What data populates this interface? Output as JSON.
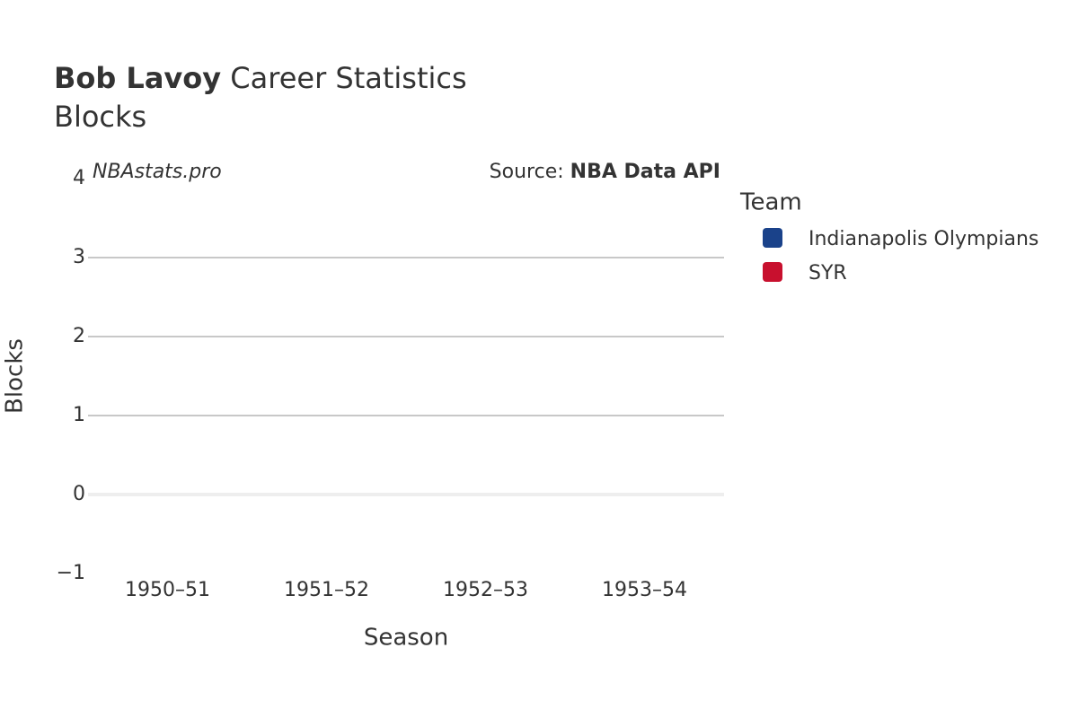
{
  "chart_data": {
    "type": "bar",
    "title": {
      "name": "Bob Lavoy",
      "rest": "Career Statistics"
    },
    "subtitle": "Blocks",
    "annotations": {
      "site": "NBAstats.pro",
      "source_label": "Source:",
      "source": "NBA Data API"
    },
    "x_label": "Season",
    "y_label": "Blocks",
    "categories": [
      "1950–51",
      "1951–52",
      "1952–53",
      "1953–54"
    ],
    "series": [
      {
        "name": "Indianapolis Olympians",
        "color": "#1a428a",
        "values": [
          0,
          0,
          0,
          0
        ]
      },
      {
        "name": "SYR",
        "color": "#c8102e",
        "values": [
          0,
          0,
          0,
          0
        ]
      }
    ],
    "legend_title": "Team",
    "legend": "right",
    "ylim": [
      -1,
      4
    ],
    "yticks": [
      {
        "value": -1,
        "label": "−1"
      },
      0,
      1,
      2,
      3,
      4
    ],
    "grid": true
  }
}
